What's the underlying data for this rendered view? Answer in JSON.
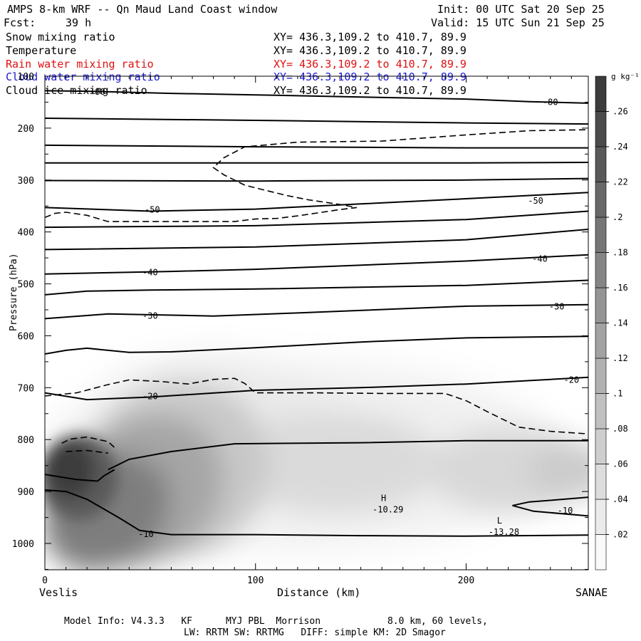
{
  "header": {
    "title": "AMPS 8-km WRF -- Qn Maud Land Coast window",
    "init": "Init: 00 UTC Sat 20 Sep 25",
    "fcst_label": "Fcst:",
    "fcst_value": "39 h",
    "valid": "Valid: 15 UTC Sun 21 Sep 25"
  },
  "fields": [
    {
      "name": "Snow mixing ratio",
      "xy": "XY= 436.3,109.2 to 410.7, 89.9",
      "color": "#000000"
    },
    {
      "name": "Temperature",
      "xy": "XY= 436.3,109.2 to 410.7, 89.9",
      "color": "#000000"
    },
    {
      "name": "Rain water mixing ratio",
      "xy": "XY= 436.3,109.2 to 410.7, 89.9",
      "color": "#e01010"
    },
    {
      "name": "Cloud water mixing ratio",
      "xy": "XY= 436.3,109.2 to 410.7, 89.9",
      "color": "#1818d0"
    },
    {
      "name": "Cloud ice mixing ratio",
      "xy": "XY= 436.3,109.2 to 410.7, 89.9",
      "color": "#000000"
    }
  ],
  "footer": {
    "line1": "Model Info: V4.3.3   KF      MYJ PBL  Morrison            8.0 km, 60 levels,",
    "line2": "LW: RRTM SW: RRTMG   DIFF: simple KM: 2D Smagor"
  },
  "chart_data": {
    "type": "cross-section",
    "xlabel": "Distance (km)",
    "ylabel": "Pressure (hPa)",
    "x_range": [
      0,
      258
    ],
    "y_range": [
      1050,
      90
    ],
    "x_ticks": [
      0,
      100,
      200
    ],
    "x_tick_labels": [
      "0",
      "100",
      "200"
    ],
    "y_ticks": [
      100,
      200,
      300,
      400,
      500,
      600,
      700,
      800,
      900,
      1000
    ],
    "y_tick_labels": [
      "100",
      "200",
      "300",
      "400",
      "500",
      "600",
      "700",
      "800",
      "900",
      "1000"
    ],
    "left_endpoint": "Veslis",
    "right_endpoint": "SANAE",
    "colorbar": {
      "unit": "g kg⁻¹",
      "levels": [
        ".02",
        ".04",
        ".06",
        ".08",
        ".1",
        ".12",
        ".14",
        ".16",
        ".18",
        ".2",
        ".22",
        ".24",
        ".26"
      ],
      "level_values": [
        0.02,
        0.04,
        0.06,
        0.08,
        0.1,
        0.12,
        0.14,
        0.16,
        0.18,
        0.2,
        0.22,
        0.24,
        0.26
      ]
    },
    "snow_max_location": {
      "x_km": 14,
      "p_hPa": 860,
      "value": 0.29
    },
    "temperature_contours": [
      {
        "label": "-80",
        "points": [
          [
            0,
            128
          ],
          [
            20,
            129
          ],
          [
            60,
            133
          ],
          [
            100,
            136
          ],
          [
            150,
            140
          ],
          [
            200,
            144
          ],
          [
            230,
            149
          ],
          [
            258,
            152
          ]
        ],
        "labels": [
          {
            "x": 25,
            "p": 130
          },
          {
            "x": 240,
            "p": 150
          }
        ]
      },
      {
        "label": "",
        "points": [
          [
            0,
            181
          ],
          [
            100,
            185
          ],
          [
            200,
            190
          ],
          [
            258,
            192
          ]
        ]
      },
      {
        "label": "",
        "points": [
          [
            0,
            233
          ],
          [
            100,
            236
          ],
          [
            200,
            238
          ],
          [
            258,
            238
          ]
        ]
      },
      {
        "label": "",
        "points": [
          [
            0,
            267
          ],
          [
            100,
            267
          ],
          [
            200,
            267
          ],
          [
            258,
            266
          ]
        ]
      },
      {
        "label": "",
        "points": [
          [
            0,
            301
          ],
          [
            100,
            302
          ],
          [
            200,
            300
          ],
          [
            258,
            297
          ]
        ]
      },
      {
        "label": "-50",
        "points": [
          [
            0,
            353
          ],
          [
            50,
            360
          ],
          [
            100,
            356
          ],
          [
            150,
            346
          ],
          [
            200,
            336
          ],
          [
            258,
            324
          ]
        ],
        "labels": [
          {
            "x": 51,
            "p": 357
          },
          {
            "x": 233,
            "p": 340
          }
        ]
      },
      {
        "label": "",
        "points": [
          [
            0,
            391
          ],
          [
            100,
            388
          ],
          [
            200,
            376
          ],
          [
            258,
            360
          ]
        ]
      },
      {
        "label": "",
        "points": [
          [
            0,
            434
          ],
          [
            100,
            429
          ],
          [
            200,
            415
          ],
          [
            258,
            395
          ]
        ]
      },
      {
        "label": "-40",
        "points": [
          [
            0,
            481
          ],
          [
            60,
            476
          ],
          [
            100,
            472
          ],
          [
            200,
            456
          ],
          [
            258,
            444
          ]
        ],
        "labels": [
          {
            "x": 50,
            "p": 478
          },
          {
            "x": 235,
            "p": 452
          }
        ]
      },
      {
        "label": "",
        "points": [
          [
            0,
            521
          ],
          [
            20,
            514
          ],
          [
            50,
            512
          ],
          [
            100,
            510
          ],
          [
            200,
            503
          ],
          [
            258,
            493
          ]
        ]
      },
      {
        "label": "-30",
        "points": [
          [
            0,
            567
          ],
          [
            20,
            561
          ],
          [
            30,
            558
          ],
          [
            80,
            562
          ],
          [
            120,
            556
          ],
          [
            200,
            543
          ],
          [
            258,
            540
          ]
        ],
        "labels": [
          {
            "x": 50,
            "p": 562
          },
          {
            "x": 243,
            "p": 544
          }
        ]
      },
      {
        "label": "",
        "points": [
          [
            0,
            635
          ],
          [
            10,
            628
          ],
          [
            20,
            624
          ],
          [
            40,
            632
          ],
          [
            60,
            631
          ],
          [
            100,
            623
          ],
          [
            150,
            612
          ],
          [
            200,
            604
          ],
          [
            258,
            601
          ]
        ]
      },
      {
        "label": "-20",
        "points": [
          [
            0,
            710
          ],
          [
            20,
            723
          ],
          [
            50,
            718
          ],
          [
            100,
            705
          ],
          [
            150,
            700
          ],
          [
            200,
            693
          ],
          [
            258,
            680
          ]
        ],
        "labels": [
          {
            "x": 50,
            "p": 717
          },
          {
            "x": 250,
            "p": 685
          }
        ]
      },
      {
        "label": "",
        "points": [
          [
            30,
            858
          ],
          [
            40,
            838
          ],
          [
            60,
            823
          ],
          [
            90,
            808
          ],
          [
            150,
            806
          ],
          [
            200,
            802
          ],
          [
            258,
            802
          ]
        ]
      },
      {
        "label": "-10",
        "points": [
          [
            0,
            897
          ],
          [
            10,
            900
          ],
          [
            20,
            915
          ],
          [
            35,
            950
          ],
          [
            45,
            975
          ],
          [
            60,
            983
          ],
          [
            100,
            983
          ],
          [
            150,
            985
          ],
          [
            200,
            986
          ],
          [
            258,
            984
          ]
        ],
        "labels": [
          {
            "x": 48,
            "p": 982
          },
          {
            "x": 247,
            "p": 937
          }
        ]
      },
      {
        "label": "",
        "points": [
          [
            0,
            867
          ],
          [
            15,
            877
          ],
          [
            25,
            880
          ],
          [
            28,
            870
          ],
          [
            33,
            858
          ]
        ]
      },
      {
        "label": "",
        "points": [
          [
            258,
            911
          ],
          [
            240,
            917
          ],
          [
            230,
            920
          ],
          [
            222,
            927
          ],
          [
            232,
            938
          ],
          [
            258,
            947
          ]
        ]
      }
    ],
    "dashed_contours": [
      {
        "points": [
          [
            0,
            372
          ],
          [
            5,
            364
          ],
          [
            10,
            362
          ],
          [
            20,
            368
          ],
          [
            30,
            380
          ],
          [
            60,
            380
          ],
          [
            90,
            380
          ],
          [
            100,
            375
          ],
          [
            110,
            374
          ],
          [
            120,
            369
          ],
          [
            130,
            363
          ],
          [
            140,
            357
          ],
          [
            148,
            353
          ],
          [
            140,
            347
          ],
          [
            125,
            338
          ],
          [
            115,
            330
          ],
          [
            105,
            320
          ],
          [
            95,
            310
          ],
          [
            85,
            290
          ],
          [
            80,
            276
          ],
          [
            85,
            257
          ],
          [
            95,
            236
          ],
          [
            120,
            227
          ],
          [
            160,
            225
          ],
          [
            200,
            213
          ],
          [
            230,
            205
          ],
          [
            258,
            203
          ]
        ]
      },
      {
        "points": [
          [
            0,
            716
          ],
          [
            15,
            710
          ],
          [
            30,
            694
          ],
          [
            40,
            685
          ],
          [
            55,
            688
          ],
          [
            68,
            693
          ],
          [
            80,
            684
          ],
          [
            90,
            682
          ],
          [
            95,
            692
          ],
          [
            100,
            710
          ],
          [
            130,
            710
          ],
          [
            160,
            711
          ],
          [
            190,
            711
          ],
          [
            200,
            725
          ],
          [
            210,
            746
          ],
          [
            225,
            776
          ],
          [
            240,
            784
          ],
          [
            258,
            789
          ]
        ]
      },
      {
        "points": [
          [
            8,
            807
          ],
          [
            12,
            799
          ],
          [
            20,
            795
          ],
          [
            30,
            804
          ],
          [
            33,
            815
          ]
        ]
      },
      {
        "points": [
          [
            10,
            823
          ],
          [
            20,
            821
          ],
          [
            30,
            826
          ]
        ]
      }
    ],
    "annotations": [
      {
        "kind": "H",
        "value": "-10.29",
        "x_km": 163,
        "p_hPa": 928
      },
      {
        "kind": "L",
        "value": "-13.28",
        "x_km": 218,
        "p_hPa": 971
      }
    ]
  }
}
